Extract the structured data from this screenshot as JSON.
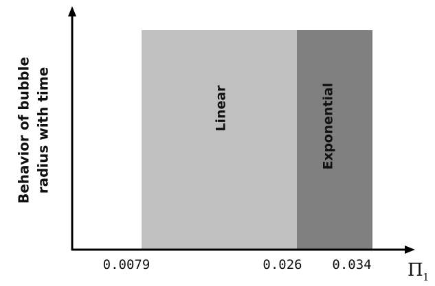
{
  "diagram": {
    "y_axis_label_line1": "Behavior of bubble",
    "y_axis_label_line2": "radius with time",
    "x_axis_symbol": "Π",
    "x_axis_subscript": "1",
    "ticks": [
      {
        "label": "0.0079"
      },
      {
        "label": "0.026"
      },
      {
        "label": "0.034"
      }
    ],
    "regions": [
      {
        "label": "",
        "color": "#ffffff"
      },
      {
        "label": "Linear",
        "color": "#c0c0c0"
      },
      {
        "label": "Exponential",
        "color": "#808080"
      }
    ],
    "axis_color": "#000000"
  }
}
